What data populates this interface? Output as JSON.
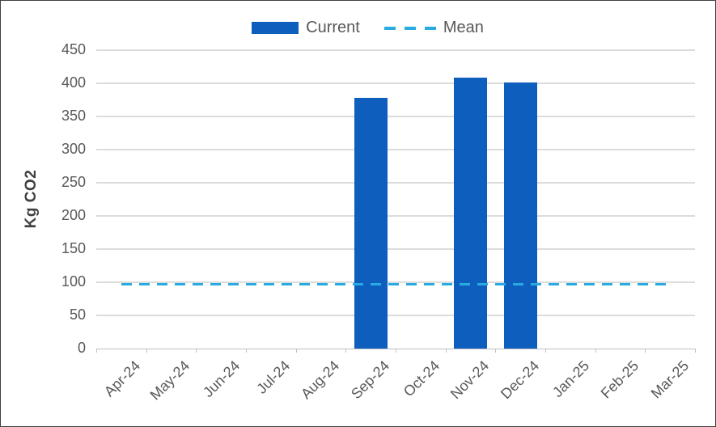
{
  "chart_data": {
    "type": "bar",
    "title": "",
    "xlabel": "",
    "ylabel": "Kg CO2",
    "categories": [
      "Apr-24",
      "May-24",
      "Jun-24",
      "Jul-24",
      "Aug-24",
      "Sep-24",
      "Oct-24",
      "Nov-24",
      "Dec-24",
      "Jan-25",
      "Feb-25",
      "Mar-25"
    ],
    "series": [
      {
        "name": "Current",
        "type": "bar",
        "color": "#0d5ebd",
        "values": [
          null,
          null,
          null,
          null,
          null,
          378,
          null,
          408,
          401,
          null,
          null,
          null
        ]
      },
      {
        "name": "Mean",
        "type": "dashed-line",
        "color": "#29abe2",
        "value": 97
      }
    ],
    "ylim": [
      0,
      450
    ],
    "yticks": [
      0,
      50,
      100,
      150,
      200,
      250,
      300,
      350,
      400,
      450
    ],
    "grid": true,
    "legend_position": "top-center"
  },
  "legend": {
    "current_label": "Current",
    "mean_label": "Mean"
  },
  "colors": {
    "bar": "#0d5ebd",
    "mean_line": "#29abe2",
    "gridline": "#dcdcdc",
    "axis": "#bfbfbf",
    "tick_text": "#595959",
    "axis_title_text": "#404040",
    "frame_border": "#3f3f3f",
    "background": "#ffffff"
  }
}
